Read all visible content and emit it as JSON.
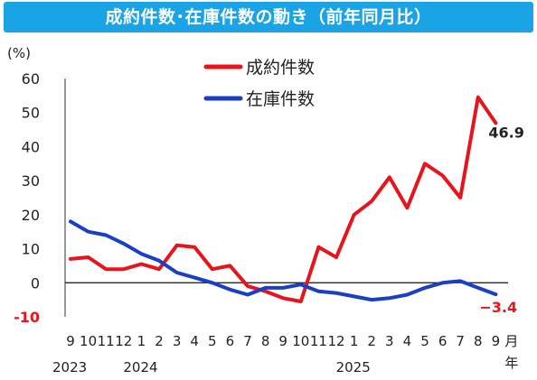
{
  "title": "成約件数･在庫件数の動き（前年同月比）",
  "chart_data": {
    "type": "line",
    "title": "成約件数･在庫件数の動き（前年同月比）",
    "ylabel": "(%)",
    "ylim": [
      -10,
      60
    ],
    "yticks": [
      -10,
      0,
      10,
      20,
      30,
      40,
      50,
      60
    ],
    "categories": [
      "9",
      "10",
      "11",
      "12",
      "1",
      "2",
      "3",
      "4",
      "5",
      "6",
      "7",
      "8",
      "9",
      "10",
      "11",
      "12",
      "1",
      "2",
      "3",
      "4",
      "5",
      "6",
      "7",
      "8",
      "9"
    ],
    "month_suffix": "月",
    "year_suffix": "年",
    "year_labels": [
      {
        "label": "2023",
        "at_index": 0
      },
      {
        "label": "2024",
        "at_index": 4
      },
      {
        "label": "2025",
        "at_index": 16
      }
    ],
    "grid": false,
    "zero_line": true,
    "legend_placement": "top-center",
    "series": [
      {
        "name": "成約件数",
        "color": "#e8141c",
        "values": [
          7,
          7.5,
          4,
          4,
          5.5,
          4,
          11,
          10.5,
          4,
          5,
          -1,
          -2.5,
          -4.5,
          -5.5,
          10.5,
          7.5,
          20,
          24,
          31,
          22,
          35,
          31.5,
          25,
          54.5,
          46.9
        ]
      },
      {
        "name": "在庫件数",
        "color": "#1a3fc7",
        "values": [
          18,
          15,
          14,
          11.5,
          8.5,
          6.5,
          3,
          1.5,
          0,
          -2,
          -3.5,
          -1.5,
          -1.5,
          -0.5,
          -2.5,
          -3,
          -4,
          -5,
          -4.5,
          -3.5,
          -1.5,
          0,
          0.5,
          -1.5,
          -3.4
        ]
      }
    ],
    "annotations": [
      {
        "text": "46.9",
        "series": 0,
        "color": "#222222"
      },
      {
        "text": "−3.4",
        "series": 1,
        "color": "#e8141c"
      }
    ],
    "ytick_colors": {
      "-10": "#e8141c",
      "default": "#222222"
    }
  }
}
